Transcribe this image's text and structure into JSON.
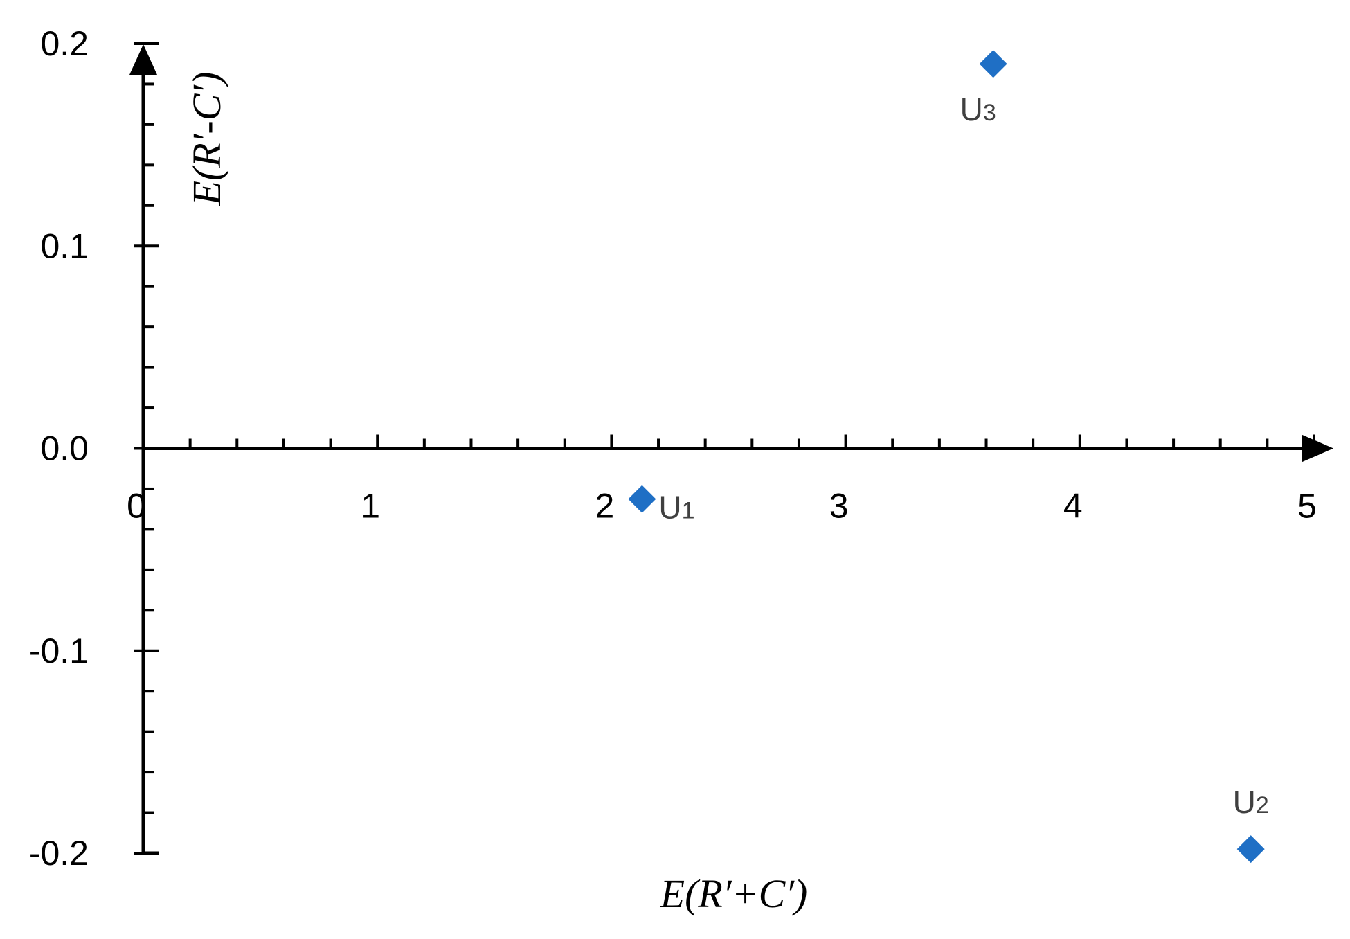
{
  "chart_data": {
    "type": "scatter",
    "xlabel": "E(R′+C′)",
    "ylabel": "E(R′-C′)",
    "xlim": [
      0,
      5
    ],
    "ylim": [
      -0.2,
      0.2
    ],
    "x_ticks": [
      "0",
      "1",
      "2",
      "3",
      "4",
      "5"
    ],
    "y_ticks": [
      "0.2",
      "0.1",
      "0.0",
      "-0.1",
      "-0.2"
    ],
    "grid": false,
    "marker": "diamond",
    "color": "#1F6FC5",
    "points": [
      {
        "label": "U",
        "sub": "1",
        "x": 2.13,
        "y": -0.025
      },
      {
        "label": "U",
        "sub": "2",
        "x": 4.73,
        "y": -0.198
      },
      {
        "label": "U",
        "sub": "3",
        "x": 3.63,
        "y": 0.19
      }
    ]
  }
}
